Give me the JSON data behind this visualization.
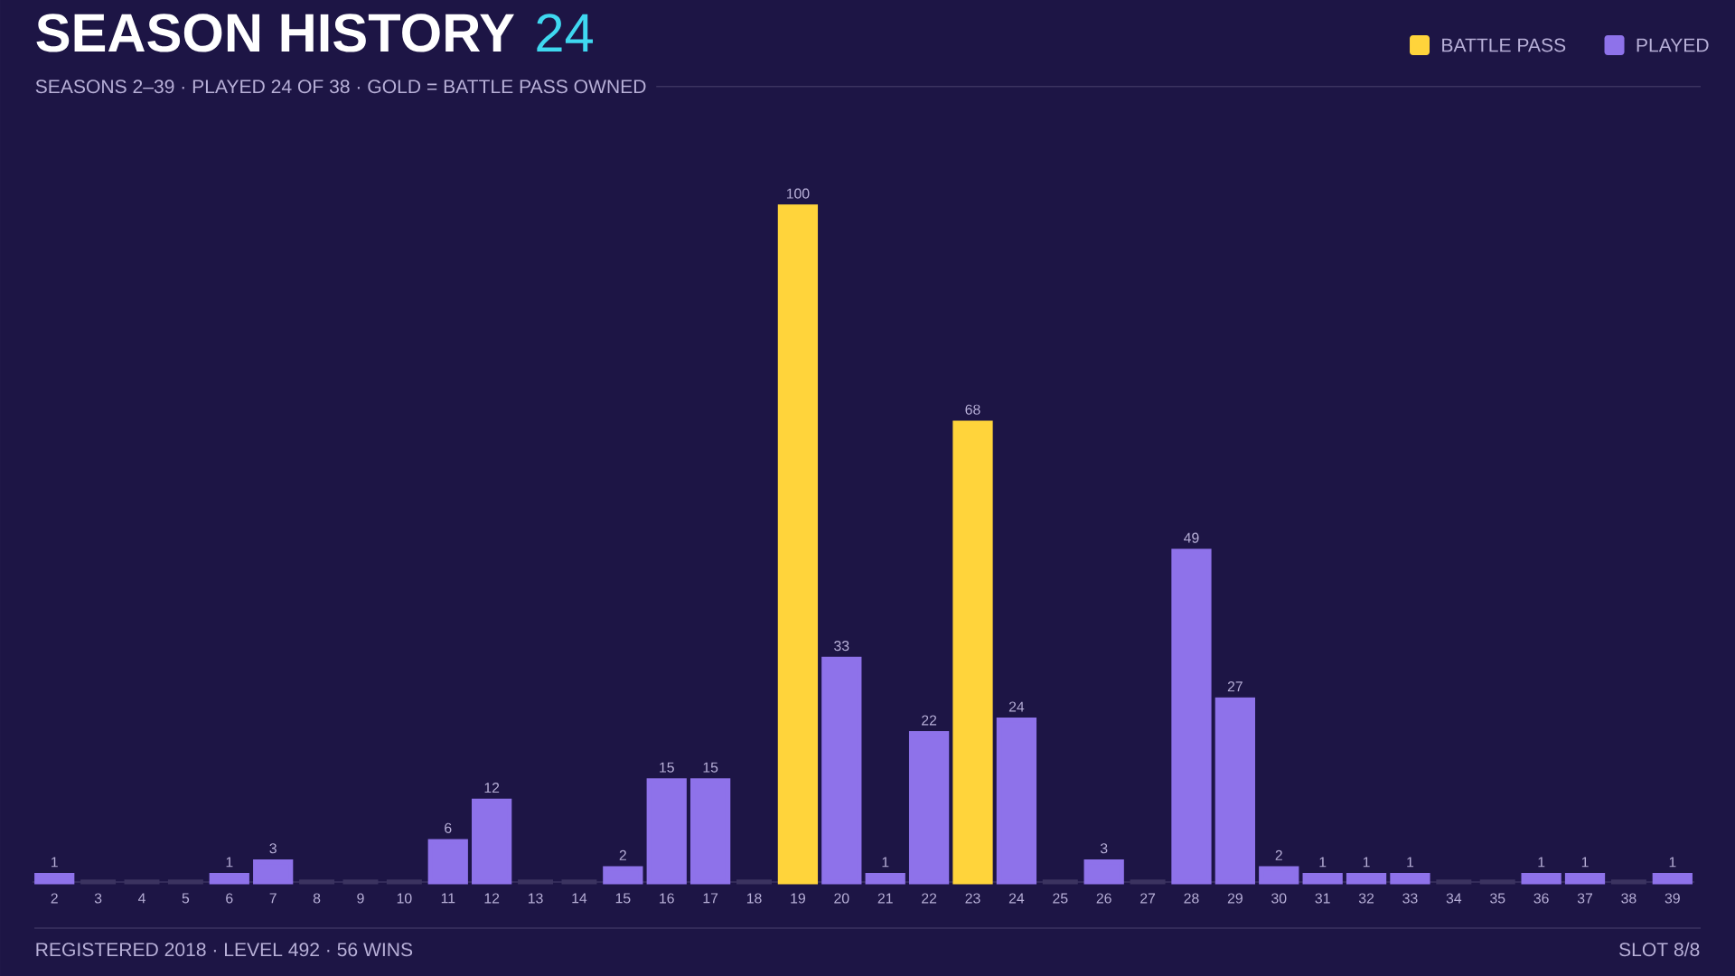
{
  "chart_data": {
    "type": "bar",
    "title": "SEASON HISTORY",
    "subtitle": "SEASONS 2–39 · PLAYED 24 OF 38 · GOLD = BATTLE PASS OWNED",
    "categories": [
      "2",
      "3",
      "4",
      "5",
      "6",
      "7",
      "8",
      "9",
      "10",
      "11",
      "12",
      "13",
      "14",
      "15",
      "16",
      "17",
      "18",
      "19",
      "20",
      "21",
      "22",
      "23",
      "24",
      "25",
      "26",
      "27",
      "28",
      "29",
      "30",
      "31",
      "32",
      "33",
      "34",
      "35",
      "36",
      "37",
      "38",
      "39"
    ],
    "series": [
      {
        "name": "BATTLE PASS",
        "color": "#ffd43b",
        "values": [
          null,
          null,
          null,
          null,
          null,
          null,
          null,
          null,
          null,
          null,
          null,
          null,
          null,
          null,
          null,
          null,
          null,
          100,
          null,
          null,
          null,
          68,
          null,
          null,
          null,
          null,
          null,
          null,
          null,
          null,
          null,
          null,
          null,
          null,
          null,
          null,
          null,
          null
        ],
        "value_labels": [
          null,
          null,
          null,
          null,
          null,
          null,
          null,
          null,
          null,
          null,
          null,
          null,
          null,
          null,
          null,
          null,
          null,
          "100",
          null,
          null,
          null,
          "68",
          null,
          null,
          null,
          null,
          null,
          null,
          null,
          null,
          null,
          null,
          null,
          null,
          null,
          null,
          null,
          null
        ]
      },
      {
        "name": "PLAYED",
        "color": "#8e72ea",
        "values": [
          1,
          null,
          null,
          null,
          1,
          3,
          null,
          null,
          null,
          6,
          12,
          null,
          null,
          2,
          15,
          15,
          null,
          null,
          33,
          1,
          22,
          null,
          24,
          null,
          3,
          null,
          49,
          27,
          2,
          1,
          1,
          1,
          null,
          null,
          1,
          1,
          null,
          1
        ],
        "value_labels": [
          "1",
          null,
          null,
          null,
          "1",
          "3",
          null,
          null,
          null,
          "6",
          "12",
          null,
          null,
          "2",
          "15",
          "15",
          null,
          null,
          "33",
          "1",
          "22",
          null,
          "24",
          null,
          "3",
          null,
          "49",
          "27",
          "2",
          "1",
          "1",
          "1",
          null,
          null,
          "1",
          "1",
          null,
          "1"
        ]
      },
      {
        "color": "#3b3360",
        "values": [
          null,
          0,
          0,
          0,
          null,
          null,
          0,
          0,
          0,
          null,
          null,
          0,
          0,
          null,
          null,
          null,
          0,
          null,
          null,
          null,
          null,
          null,
          null,
          0,
          null,
          0,
          null,
          null,
          null,
          null,
          null,
          null,
          0,
          0,
          null,
          null,
          0,
          null
        ]
      }
    ],
    "legend": "top right",
    "annotations": [
      "24",
      "REGISTERED 2018 · LEVEL 492 · 56 WINS",
      "SLOT 8/8"
    ]
  }
}
